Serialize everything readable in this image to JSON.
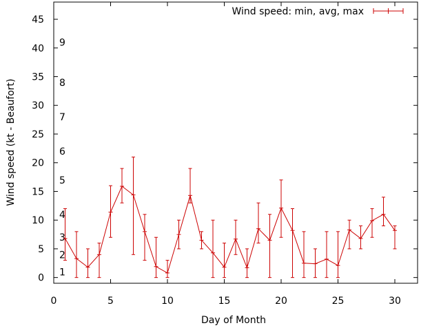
{
  "chart_data": {
    "type": "line",
    "title": "",
    "xlabel": "Day of Month",
    "ylabel": "Wind speed (kt - Beaufort)",
    "xlim": [
      0,
      32
    ],
    "ylim": [
      -1,
      48
    ],
    "xticks": [
      0,
      5,
      10,
      15,
      20,
      25,
      30
    ],
    "yticks": [
      0,
      5,
      10,
      15,
      20,
      25,
      30,
      35,
      40,
      45
    ],
    "beaufort_scale": [
      {
        "label": "1",
        "value": 1
      },
      {
        "label": "2",
        "value": 4
      },
      {
        "label": "3",
        "value": 7
      },
      {
        "label": "4",
        "value": 11
      },
      {
        "label": "5",
        "value": 17
      },
      {
        "label": "6",
        "value": 22
      },
      {
        "label": "7",
        "value": 28
      },
      {
        "label": "8",
        "value": 34
      },
      {
        "label": "9",
        "value": 41
      }
    ],
    "legend": {
      "label": "Wind speed: min, avg, max",
      "position": "top-right"
    },
    "series": [
      {
        "name": "Wind speed: min, avg, max",
        "color": "#cc0000",
        "x": [
          1,
          2,
          3,
          4,
          5,
          6,
          7,
          8,
          9,
          10,
          11,
          12,
          13,
          14,
          15,
          16,
          17,
          18,
          19,
          20,
          21,
          22,
          23,
          24,
          25,
          26,
          27,
          28,
          29,
          30
        ],
        "avg": [
          6.8,
          3.3,
          1.8,
          4.0,
          11.4,
          15.9,
          14.4,
          8.0,
          1.9,
          0.8,
          7.5,
          14.3,
          6.5,
          4.3,
          1.8,
          6.7,
          1.7,
          8.5,
          6.5,
          12.1,
          8.2,
          2.5,
          2.4,
          3.2,
          2.1,
          8.3,
          6.8,
          9.9,
          11.0,
          8.2
        ],
        "min": [
          3,
          0,
          0,
          0,
          7,
          13,
          4,
          3,
          0,
          0,
          5,
          13,
          5,
          0,
          0,
          4,
          0,
          6,
          0,
          7,
          0,
          0,
          0,
          0,
          0,
          5,
          5,
          7,
          9,
          5
        ],
        "max": [
          12,
          8,
          5,
          6,
          16,
          19,
          21,
          11,
          7,
          3,
          10,
          19,
          8,
          10,
          6,
          10,
          5,
          13,
          11,
          17,
          12,
          8,
          5,
          8,
          8,
          10,
          9,
          12,
          14,
          9
        ]
      }
    ]
  }
}
